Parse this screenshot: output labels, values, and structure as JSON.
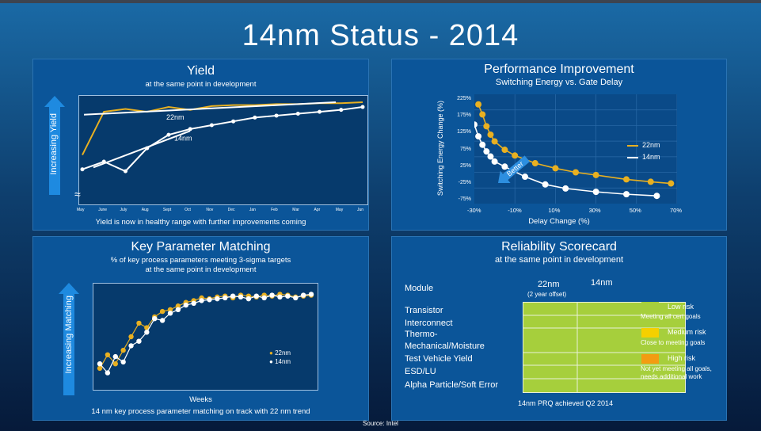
{
  "page_title": "14nm Status - 2014",
  "source": "Source: Intel",
  "yield": {
    "title": "Yield",
    "subtitle": "at the same point in development",
    "caption": "Yield is now in healthy range with further improvements coming",
    "y_axis_label": "Increasing Yield",
    "break_symbol": "≈",
    "series_labels": [
      "22nm",
      "14nm"
    ],
    "months": [
      "May",
      "June",
      "July",
      "Aug",
      "Sept",
      "Oct",
      "Nov",
      "Dec",
      "Jan",
      "Feb",
      "Mar",
      "Apr",
      "May",
      "Jun"
    ]
  },
  "performance": {
    "title": "Performance Improvement",
    "subtitle": "Switching Energy vs. Gate Delay",
    "y_axis_label": "Switching Energy Change (%)",
    "x_axis_label": "Delay Change (%)",
    "y_ticks": [
      "225%",
      "175%",
      "125%",
      "75%",
      "25%",
      "-25%",
      "-75%"
    ],
    "x_ticks": [
      "-30%",
      "-10%",
      "10%",
      "30%",
      "50%",
      "70%"
    ],
    "better_label": "Better",
    "series_labels": [
      "22nm",
      "14nm"
    ]
  },
  "key_param": {
    "title": "Key Parameter Matching",
    "subtitle_line1": "% of key process parameters meeting 3-sigma targets",
    "subtitle_line2": "at the same point in development",
    "y_axis_label": "Increasing Matching",
    "x_axis_label": "Weeks",
    "caption": "14 nm key process parameter matching on track with 22 nm trend",
    "series_labels": [
      "22nm",
      "14nm"
    ]
  },
  "reliability": {
    "title": "Reliability Scorecard",
    "subtitle": "at the same point in development",
    "module_header": "Module",
    "col1": "22nm",
    "col1_note": "(2 year offset)",
    "col2": "14nm",
    "modules": [
      "Transistor",
      "Interconnect",
      "Thermo-",
      "Mechanical/Moisture",
      "Test Vehicle Yield",
      "ESD/LU",
      "Alpha Particle/Soft Error"
    ],
    "legend": [
      {
        "label": "Low risk",
        "desc": "Meeting all cert goals",
        "color": "#a6cf3c"
      },
      {
        "label": "Medium risk",
        "desc": "Close to meeting goals",
        "color": "#f5d000"
      },
      {
        "label": "High risk",
        "desc": "Not yet meeting all goals,",
        "desc2": "needs additional work",
        "color": "#f39c12"
      }
    ],
    "footer": "14nm PRQ achieved Q2 2014"
  },
  "chart_data": [
    {
      "type": "line",
      "name": "yield",
      "x_labels": [
        "May",
        "June",
        "July",
        "Aug",
        "Sept",
        "Oct",
        "Nov",
        "Dec",
        "Jan",
        "Feb",
        "Mar",
        "Apr",
        "May",
        "Jun"
      ],
      "series": [
        {
          "name": "22nm",
          "color": "#e8b021",
          "values": [
            0.45,
            0.9,
            0.93,
            0.9,
            0.95,
            0.92,
            0.96,
            0.97,
            0.97,
            0.98,
            0.98,
            0.99,
            0.99,
            1.0
          ]
        },
        {
          "name": "14nm",
          "color": "#ffffff",
          "values": [
            0.3,
            0.38,
            0.28,
            0.52,
            0.66,
            0.72,
            0.76,
            0.8,
            0.84,
            0.86,
            0.88,
            0.9,
            0.92,
            0.95
          ]
        }
      ]
    },
    {
      "type": "line",
      "name": "performance",
      "xlim": [
        -30,
        70
      ],
      "ylim": [
        -75,
        250
      ],
      "series": [
        {
          "name": "22nm",
          "color": "#e8b021",
          "x": [
            -28,
            -26,
            -24,
            -22,
            -20,
            -15,
            -10,
            0,
            10,
            20,
            30,
            45,
            57,
            67
          ],
          "y": [
            220,
            190,
            155,
            130,
            110,
            85,
            68,
            45,
            30,
            18,
            10,
            -3,
            -10,
            -15
          ]
        },
        {
          "name": "14nm",
          "color": "#ffffff",
          "x": [
            -30,
            -28,
            -26,
            -24,
            -22,
            -20,
            -15,
            -5,
            5,
            15,
            30,
            45,
            60
          ],
          "y": [
            160,
            125,
            100,
            80,
            65,
            50,
            35,
            5,
            -18,
            -30,
            -40,
            -47,
            -52
          ]
        }
      ]
    },
    {
      "type": "line",
      "name": "key_param",
      "x_label": "Weeks",
      "ylim": [
        0,
        1
      ],
      "series": [
        {
          "name": "22nm",
          "color": "#e8b021",
          "values": [
            0.15,
            0.3,
            0.2,
            0.35,
            0.5,
            0.65,
            0.6,
            0.72,
            0.78,
            0.8,
            0.84,
            0.88,
            0.9,
            0.93,
            0.92,
            0.94,
            0.95,
            0.93,
            0.96,
            0.95,
            0.94,
            0.96,
            0.95,
            0.97,
            0.96,
            0.94,
            0.95,
            0.96
          ]
        },
        {
          "name": "14nm",
          "color": "#ffffff",
          "values": [
            0.2,
            0.1,
            0.28,
            0.22,
            0.4,
            0.45,
            0.55,
            0.7,
            0.68,
            0.76,
            0.8,
            0.85,
            0.87,
            0.9,
            0.91,
            0.92,
            0.93,
            0.95,
            0.94,
            0.92,
            0.95,
            0.93,
            0.96,
            0.94,
            0.95,
            0.93,
            0.96,
            0.97
          ]
        }
      ]
    }
  ]
}
